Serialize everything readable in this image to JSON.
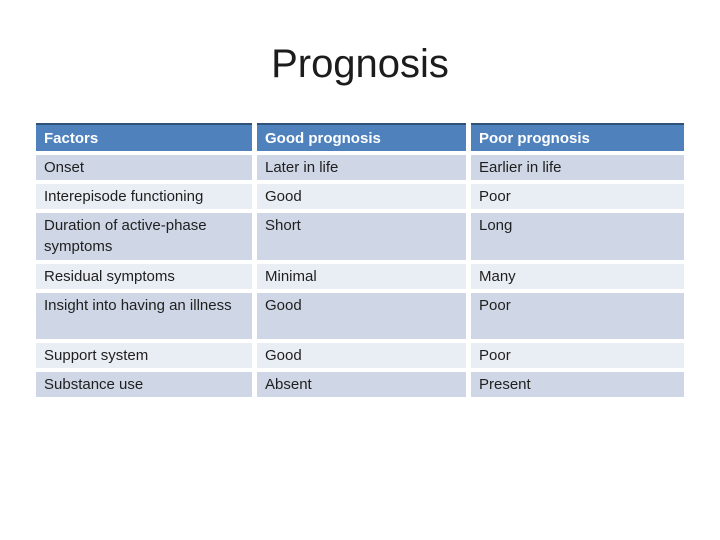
{
  "slide": {
    "title": "Prognosis",
    "colors": {
      "header_bg": "#4F81BD",
      "header_text": "#FFFFFF",
      "header_top_border": "#2F5378",
      "row_band_dark": "#CFD6E5",
      "row_band_light": "#E9EDF4",
      "body_text": "#1F1F1F",
      "title_text": "#1C1C1C",
      "background": "#FFFFFF"
    },
    "table": {
      "columns": [
        "Factors",
        "Good prognosis",
        "Poor prognosis"
      ],
      "rows": [
        {
          "factor": "Onset",
          "good": "Later in life",
          "poor": "Earlier in life"
        },
        {
          "factor": "Interepisode functioning",
          "good": "Good",
          "poor": "Poor"
        },
        {
          "factor": "Duration of active-phase symptoms",
          "good": "Short",
          "poor": "Long"
        },
        {
          "factor": "Residual symptoms",
          "good": "Minimal",
          "poor": "Many"
        },
        {
          "factor": "Insight into having an illness",
          "good": "Good",
          "poor": "Poor"
        },
        {
          "factor": "Support system",
          "good": "Good",
          "poor": "Poor"
        },
        {
          "factor": "Substance use",
          "good": "Absent",
          "poor": "Present"
        }
      ]
    }
  }
}
